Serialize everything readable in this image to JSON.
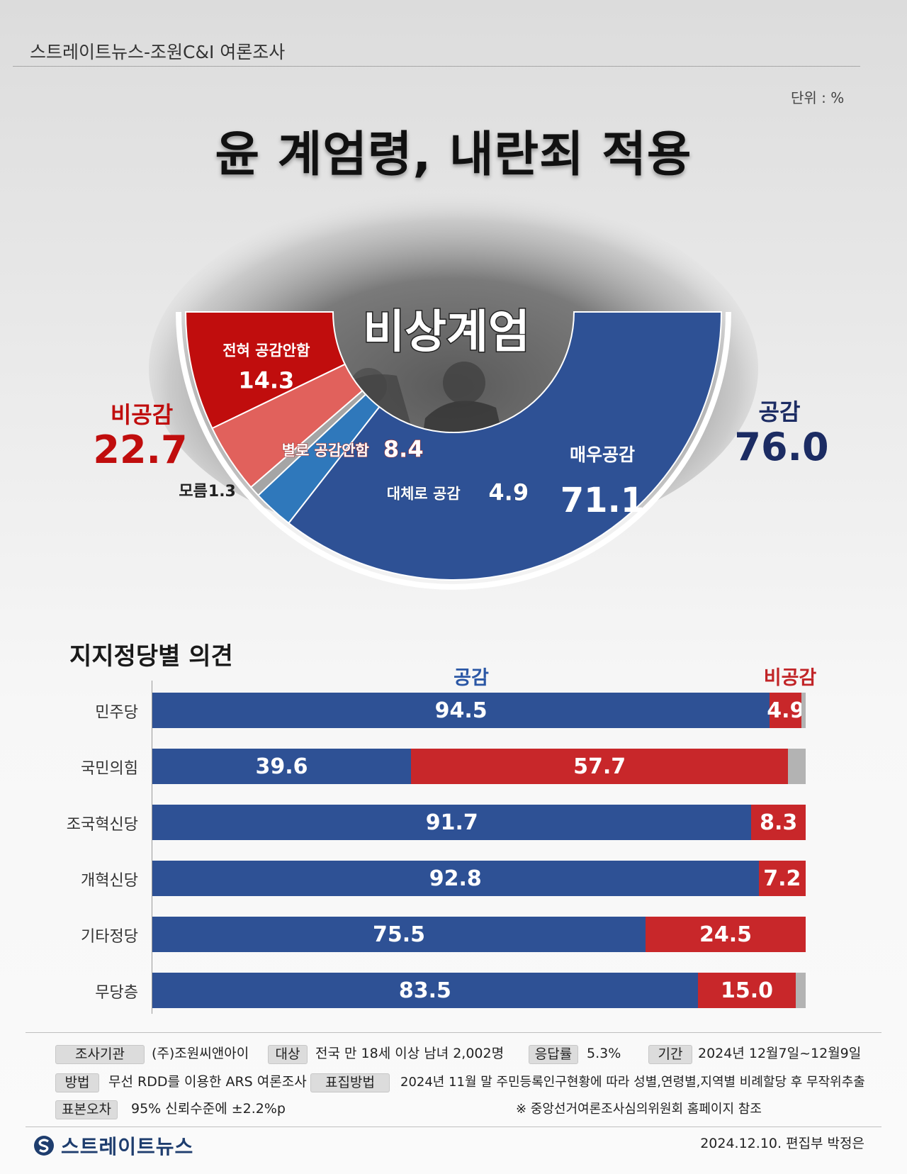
{
  "header": {
    "title": "스트레이트뉴스-조원C&I 여론조사",
    "unit": "단위 : %"
  },
  "main_title": "윤 계엄령,  내란죄 적용",
  "photo_caption": "비상계엄",
  "summary": {
    "disagree_label": "비공감",
    "disagree_value": "22.7",
    "agree_label": "공감",
    "agree_value": "76.0"
  },
  "colors": {
    "strong_disagree": "#c00d0d",
    "mild_disagree": "#e1615c",
    "unknown": "#a5a5a5",
    "mild_agree": "#2f78bb",
    "strong_agree": "#2e5195"
  },
  "chart_data": [
    {
      "type": "pie",
      "subtype": "half-donut",
      "slices": [
        {
          "label": "전혀 공감안함",
          "value": 14.3,
          "color": "#c00d0d"
        },
        {
          "label": "별로 공감안함",
          "value": 8.4,
          "color": "#e1615c"
        },
        {
          "label": "모름",
          "value": 1.3,
          "color": "#a5a5a5"
        },
        {
          "label": "대체로 공감",
          "value": 4.9,
          "color": "#2f78bb"
        },
        {
          "label": "매우공감",
          "value": 71.1,
          "color": "#2e5195"
        }
      ]
    },
    {
      "type": "bar",
      "orientation": "horizontal",
      "stacked": true,
      "title": "지지정당별 의견",
      "categories": [
        "민주당",
        "국민의힘",
        "조국혁신당",
        "개혁신당",
        "기타정당",
        "무당층"
      ],
      "series": [
        {
          "name": "공감",
          "values": [
            94.5,
            39.6,
            91.7,
            92.8,
            75.5,
            83.5
          ]
        },
        {
          "name": "비공감",
          "values": [
            4.9,
            57.7,
            8.3,
            7.2,
            24.5,
            15.0
          ]
        }
      ],
      "value_labels": {
        "agree": [
          "94.5",
          "39.6",
          "91.7",
          "92.8",
          "75.5",
          "83.5"
        ],
        "disagree": [
          "4.9",
          "57.7",
          "8.3",
          "7.2",
          "24.5",
          "15.0"
        ]
      },
      "xlim": [
        0,
        100
      ]
    }
  ],
  "footer": {
    "org_tag": "조사기관",
    "org": "(주)조원씨앤아이",
    "target_tag": "대상",
    "target": "전국 만 18세 이상 남녀 2,002명",
    "rate_tag": "응답률",
    "rate": "5.3%",
    "period_tag": "기간",
    "period": "2024년 12월7일~12월9일",
    "method_tag": "방법",
    "method": "무선 RDD를 이용한 ARS 여론조사",
    "sampling_tag": "표집방법",
    "sampling": "2024년 11월 말 주민등록인구현황에 따라 성별,연령별,지역별 비례할당 후 무작위추출",
    "error_tag": "표본오차",
    "error": "95% 신뢰수준에 ±2.2%p",
    "note": "※ 중앙선거여론조사심의위원회 홈페이지 참조",
    "logo": "스트레이트뉴스",
    "credit": "2024.12.10. 편집부 박정은"
  }
}
